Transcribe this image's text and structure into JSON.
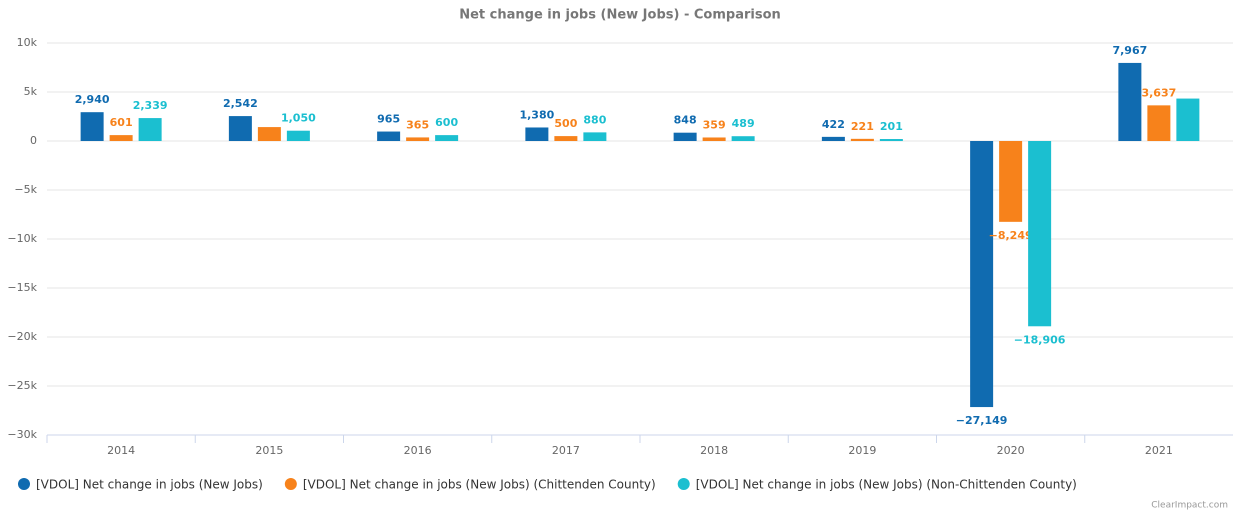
{
  "chart_data": {
    "type": "bar",
    "title": "Net change in jobs (New Jobs) - Comparison",
    "credit": "ClearImpact.com",
    "categories": [
      "2014",
      "2015",
      "2016",
      "2017",
      "2018",
      "2019",
      "2020",
      "2021"
    ],
    "series": [
      {
        "name": "[VDOL] Net change in jobs (New Jobs)",
        "color": "#106bb0",
        "values": [
          2940,
          2542,
          965,
          1380,
          848,
          422,
          -27149,
          7967
        ],
        "value_labels": [
          "2,940",
          "2,542",
          "965",
          "1,380",
          "848",
          "422",
          "−27,149",
          "7,967"
        ]
      },
      {
        "name": "[VDOL] Net change in jobs (New Jobs) (Chittenden County)",
        "color": "#f7821b",
        "values": [
          601,
          1420,
          365,
          500,
          359,
          221,
          -8249,
          3637
        ],
        "value_labels": [
          "601",
          null,
          "365",
          "500",
          "359",
          "221",
          "−8,249",
          "3,637"
        ]
      },
      {
        "name": "[VDOL] Net change in jobs (New Jobs) (Non-Chittenden County)",
        "color": "#1bbfd0",
        "values": [
          2339,
          1050,
          600,
          880,
          489,
          201,
          -18906,
          4330
        ],
        "value_labels": [
          "2,339",
          "1,050",
          "600",
          "880",
          "489",
          "201",
          "−18,906",
          null
        ]
      }
    ],
    "ylim": [
      -30000,
      10000
    ],
    "yticks": [
      {
        "value": -30000,
        "label": "−30k"
      },
      {
        "value": -25000,
        "label": "−25k"
      },
      {
        "value": -20000,
        "label": "−20k"
      },
      {
        "value": -15000,
        "label": "−15k"
      },
      {
        "value": -10000,
        "label": "−10k"
      },
      {
        "value": -5000,
        "label": "−5k"
      },
      0,
      {
        "value": 5000,
        "label": "5k"
      },
      {
        "value": 10000,
        "label": "10k"
      }
    ],
    "grid": true,
    "legend": "bottom"
  }
}
